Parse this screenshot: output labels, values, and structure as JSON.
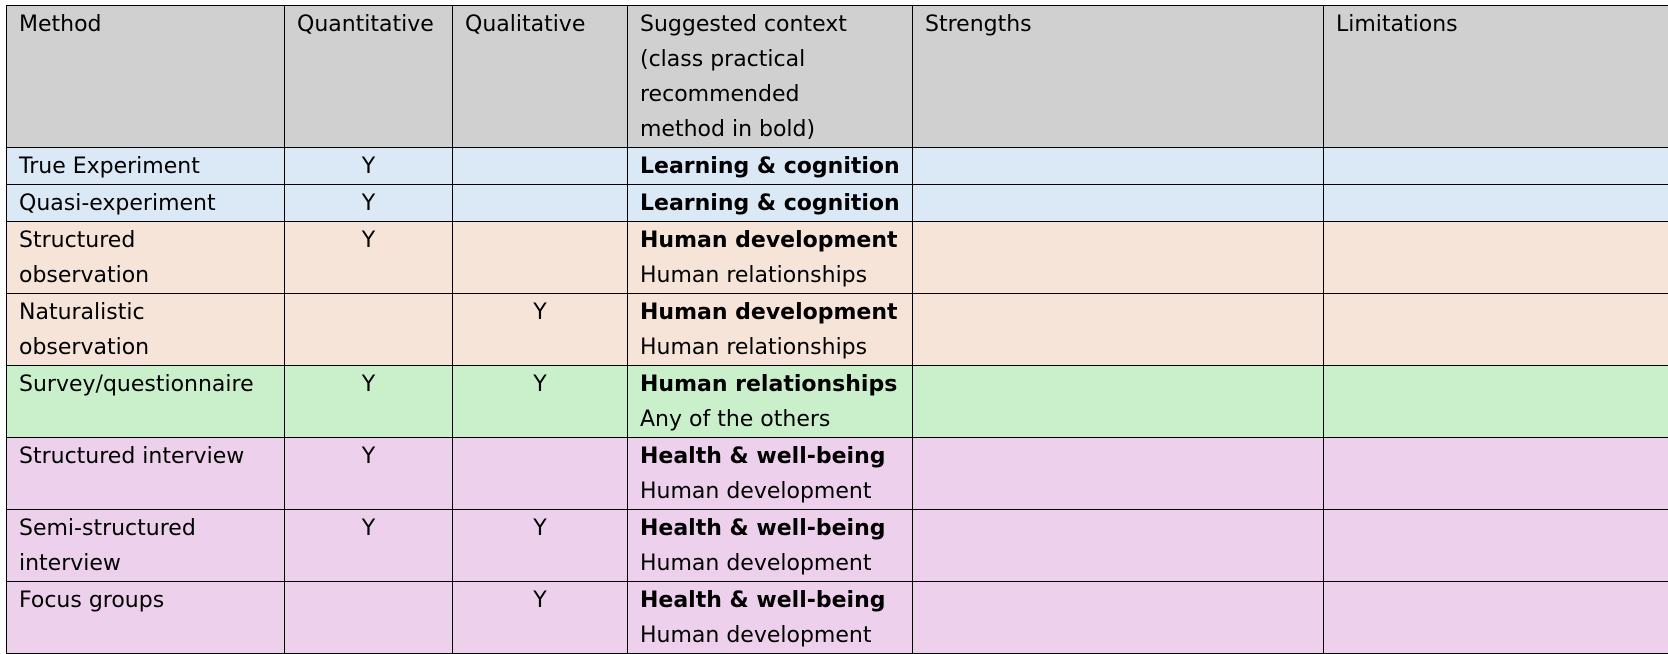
{
  "headers": {
    "method": "Method",
    "quantitative": "Quantitative",
    "qualitative": "Qualitative",
    "context_lines": [
      "Suggested context",
      "(class practical",
      "recommended",
      "method in bold)"
    ],
    "strengths": "Strengths",
    "limitations": "Limitations"
  },
  "colors": {
    "header": "#d0d0d0",
    "blue": "#dbe8f6",
    "orange": "#f7e4d8",
    "green": "#caf0cb",
    "purple": "#edd0ec"
  },
  "rows": [
    {
      "method_lines": [
        "True Experiment"
      ],
      "quantitative": "Y",
      "qualitative": "",
      "context_bold": "Learning & cognition",
      "context_other": "",
      "strengths": "",
      "limitations": "",
      "color": "blue"
    },
    {
      "method_lines": [
        "Quasi-experiment"
      ],
      "quantitative": "Y",
      "qualitative": "",
      "context_bold": "Learning & cognition",
      "context_other": "",
      "strengths": "",
      "limitations": "",
      "color": "blue"
    },
    {
      "method_lines": [
        "Structured",
        "observation"
      ],
      "quantitative": "Y",
      "qualitative": "",
      "context_bold": "Human development",
      "context_other": "Human relationships",
      "strengths": "",
      "limitations": "",
      "color": "orange"
    },
    {
      "method_lines": [
        "Naturalistic",
        "observation"
      ],
      "quantitative": "",
      "qualitative": "Y",
      "context_bold": "Human development",
      "context_other": "Human relationships",
      "strengths": "",
      "limitations": "",
      "color": "orange"
    },
    {
      "method_lines": [
        "Survey/questionnaire"
      ],
      "quantitative": "Y",
      "qualitative": "Y",
      "context_bold": "Human relationships",
      "context_other": "Any of the others",
      "strengths": "",
      "limitations": "",
      "color": "green"
    },
    {
      "method_lines": [
        "Structured interview"
      ],
      "quantitative": "Y",
      "qualitative": "",
      "context_bold": "Health & well-being",
      "context_other": "Human development",
      "strengths": "",
      "limitations": "",
      "color": "purple"
    },
    {
      "method_lines": [
        "Semi-structured",
        "interview"
      ],
      "quantitative": "Y",
      "qualitative": "Y",
      "context_bold": "Health & well-being",
      "context_other": "Human development",
      "strengths": "",
      "limitations": "",
      "color": "purple"
    },
    {
      "method_lines": [
        "Focus groups"
      ],
      "quantitative": "",
      "qualitative": "Y",
      "context_bold": "Health & well-being",
      "context_other": "Human development",
      "strengths": "",
      "limitations": "",
      "color": "purple"
    }
  ]
}
